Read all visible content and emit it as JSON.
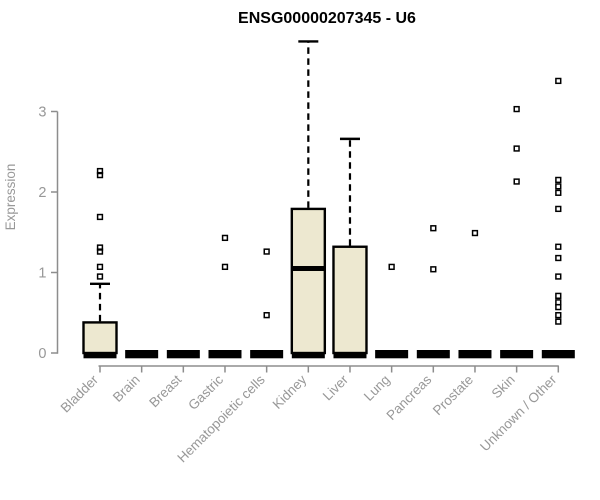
{
  "chart_data": {
    "type": "boxplot",
    "title": "ENSG00000207345 - U6",
    "xlabel": "",
    "ylabel": "Expression",
    "y_ticks": [
      0,
      1,
      2,
      3
    ],
    "ylim": [
      0,
      3.95
    ],
    "grid": false,
    "legend": null,
    "categories": [
      "Bladder",
      "Brain",
      "Breast",
      "Gastric",
      "Hematopoietic cells",
      "Kidney",
      "Liver",
      "Lung",
      "Pancreas",
      "Prostate",
      "Skin",
      "Unknown / Other"
    ],
    "boxes": [
      {
        "category": "Bladder",
        "whisker_low": 0,
        "q1": 0,
        "median": 0,
        "q3": 0.38,
        "whisker_high": 0.86,
        "outliers": [
          0.95,
          1.07,
          1.26,
          1.31,
          1.69,
          2.21,
          2.26
        ]
      },
      {
        "category": "Brain",
        "whisker_low": 0,
        "q1": 0,
        "median": 0,
        "q3": 0,
        "whisker_high": 0,
        "outliers": []
      },
      {
        "category": "Breast",
        "whisker_low": 0,
        "q1": 0,
        "median": 0,
        "q3": 0,
        "whisker_high": 0,
        "outliers": []
      },
      {
        "category": "Gastric",
        "whisker_low": 0,
        "q1": 0,
        "median": 0,
        "q3": 0,
        "whisker_high": 0,
        "outliers": [
          1.07,
          1.43
        ]
      },
      {
        "category": "Hematopoietic cells",
        "whisker_low": 0,
        "q1": 0,
        "median": 0,
        "q3": 0,
        "whisker_high": 0,
        "outliers": [
          0.47,
          1.26
        ]
      },
      {
        "category": "Kidney",
        "whisker_low": 0,
        "q1": 0,
        "median": 1.05,
        "q3": 1.79,
        "whisker_high": 3.87,
        "outliers": []
      },
      {
        "category": "Liver",
        "whisker_low": 0,
        "q1": 0,
        "median": 0,
        "q3": 1.32,
        "whisker_high": 2.66,
        "outliers": []
      },
      {
        "category": "Lung",
        "whisker_low": 0,
        "q1": 0,
        "median": 0,
        "q3": 0,
        "whisker_high": 0,
        "outliers": [
          1.07
        ]
      },
      {
        "category": "Pancreas",
        "whisker_low": 0,
        "q1": 0,
        "median": 0,
        "q3": 0,
        "whisker_high": 0,
        "outliers": [
          1.04,
          1.55
        ]
      },
      {
        "category": "Prostate",
        "whisker_low": 0,
        "q1": 0,
        "median": 0,
        "q3": 0,
        "whisker_high": 0,
        "outliers": [
          1.49
        ]
      },
      {
        "category": "Skin",
        "whisker_low": 0,
        "q1": 0,
        "median": 0,
        "q3": 0,
        "whisker_high": 0,
        "outliers": [
          2.13,
          2.54,
          3.03
        ]
      },
      {
        "category": "Unknown / Other",
        "whisker_low": 0,
        "q1": 0,
        "median": 0,
        "q3": 0,
        "whisker_high": 0,
        "outliers": [
          0.39,
          0.47,
          0.57,
          0.63,
          0.71,
          0.95,
          1.18,
          1.32,
          1.79,
          1.99,
          2.07,
          2.15,
          3.38
        ]
      }
    ],
    "colors": {
      "box_fill": "#EDE8D0",
      "box_stroke": "#000000",
      "median": "#000000",
      "whisker": "#000000",
      "outlier": "#000000",
      "axis_line": "#8d8d8d",
      "axis_text": "#989898",
      "title": "#000000",
      "background": "#ffffff"
    }
  }
}
